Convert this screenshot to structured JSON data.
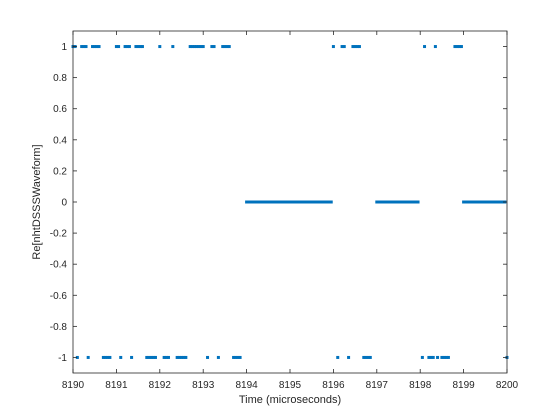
{
  "chart_data": {
    "type": "scatter",
    "title": "",
    "xlabel": "Time (microseconds)",
    "ylabel": "Re[nhtDSSSWaveform]",
    "xlim": [
      8190,
      8200
    ],
    "ylim": [
      -1.1,
      1.1
    ],
    "xticks": [
      8190,
      8191,
      8192,
      8193,
      8194,
      8195,
      8196,
      8197,
      8198,
      8199,
      8200
    ],
    "yticks": [
      1,
      0.8,
      0.6,
      0.4,
      0.2,
      0,
      -0.2,
      -0.4,
      -0.6,
      -0.8,
      -1
    ],
    "xtick_labels": [
      "8190",
      "8191",
      "8192",
      "8193",
      "8194",
      "8195",
      "8196",
      "8197",
      "8198",
      "8199",
      "8200"
    ],
    "ytick_labels": [
      "1",
      "0.8",
      "0.6",
      "0.4",
      "0.2",
      "0",
      "-0.2",
      "-0.4",
      "-0.6",
      "-0.8",
      "-1"
    ],
    "grid": false,
    "marker_color": "#0072bd",
    "series": [
      {
        "values_by_level": [
          {
            "y": 1,
            "x": [
              8190.0,
              8190.05,
              8190.2,
              8190.25,
              8190.3,
              8190.45,
              8190.5,
              8190.55,
              8190.6,
              8191.0,
              8191.05,
              8191.2,
              8191.25,
              8191.3,
              8191.45,
              8191.5,
              8191.55,
              8191.6,
              8192.0,
              8192.3,
              8192.7,
              8192.75,
              8192.8,
              8192.85,
              8192.9,
              8192.95,
              8193.0,
              8193.2,
              8193.25,
              8193.45,
              8193.5,
              8193.55,
              8193.6,
              8196.0,
              8196.2,
              8196.25,
              8196.45,
              8196.5,
              8196.55,
              8196.6,
              8198.1,
              8198.35,
              8198.8,
              8198.85,
              8198.9,
              8198.95
            ]
          },
          {
            "y": 0,
            "x": [
              8194.0,
              8194.05,
              8194.1,
              8194.15,
              8194.2,
              8194.25,
              8194.3,
              8194.35,
              8194.4,
              8194.45,
              8194.5,
              8194.55,
              8194.6,
              8194.65,
              8194.7,
              8194.75,
              8194.8,
              8194.85,
              8194.9,
              8194.95,
              8195.0,
              8195.05,
              8195.1,
              8195.15,
              8195.2,
              8195.25,
              8195.3,
              8195.35,
              8195.4,
              8195.45,
              8195.5,
              8195.55,
              8195.6,
              8195.65,
              8195.7,
              8195.75,
              8195.8,
              8195.85,
              8195.9,
              8195.95,
              8197.0,
              8197.05,
              8197.1,
              8197.15,
              8197.2,
              8197.25,
              8197.3,
              8197.35,
              8197.4,
              8197.45,
              8197.5,
              8197.55,
              8197.6,
              8197.65,
              8197.7,
              8197.75,
              8197.8,
              8197.85,
              8197.9,
              8197.95,
              8199.0,
              8199.05,
              8199.1,
              8199.15,
              8199.2,
              8199.25,
              8199.3,
              8199.35,
              8199.4,
              8199.45,
              8199.5,
              8199.55,
              8199.6,
              8199.65,
              8199.7,
              8199.75,
              8199.8,
              8199.85,
              8199.9,
              8199.95
            ]
          },
          {
            "y": -1,
            "x": [
              8190.1,
              8190.35,
              8190.7,
              8190.75,
              8190.8,
              8190.85,
              8191.1,
              8191.35,
              8191.7,
              8191.75,
              8191.8,
              8191.85,
              8191.9,
              8192.1,
              8192.15,
              8192.2,
              8192.4,
              8192.45,
              8192.5,
              8192.55,
              8192.6,
              8193.1,
              8193.35,
              8193.7,
              8193.75,
              8193.8,
              8193.85,
              8196.1,
              8196.35,
              8196.7,
              8196.75,
              8196.8,
              8196.85,
              8198.05,
              8198.2,
              8198.25,
              8198.3,
              8198.4,
              8198.5,
              8198.55,
              8198.6,
              8198.65,
              8200.0
            ]
          }
        ]
      }
    ]
  }
}
